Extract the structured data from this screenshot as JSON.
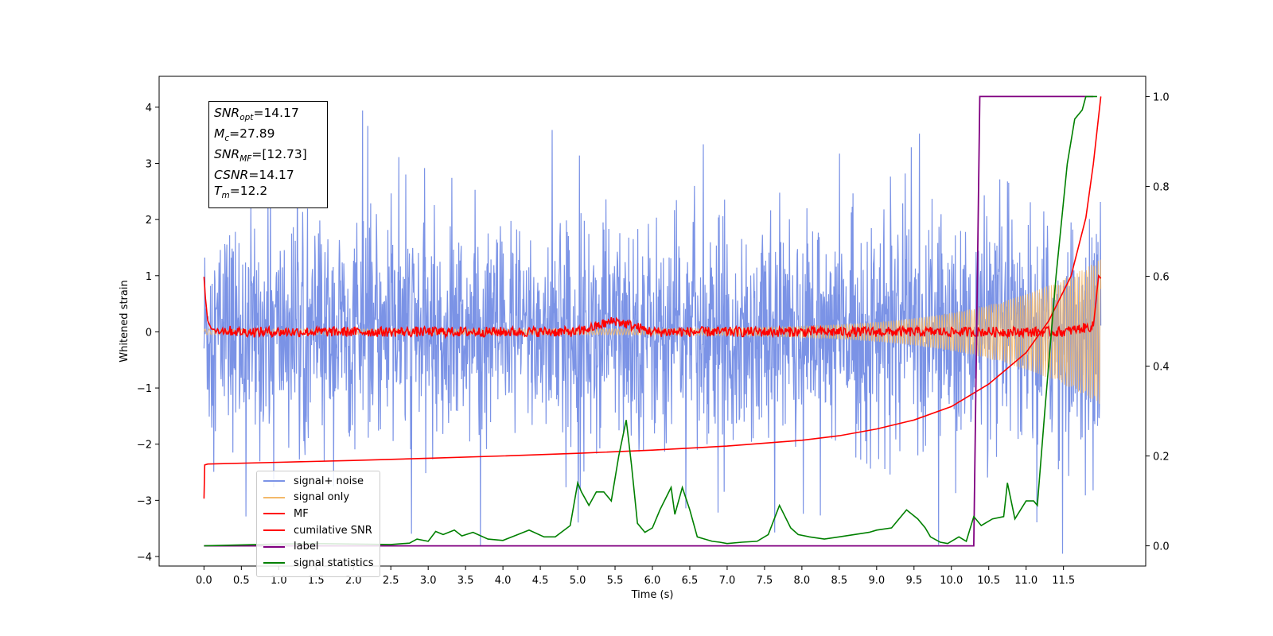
{
  "chart_data": {
    "type": "line",
    "xlabel": "Time (s)",
    "ylabel": "Whitened strain",
    "xlim": [
      -0.6,
      12.6
    ],
    "ylim_left": [
      -4.17,
      4.55
    ],
    "ylim_right": [
      -0.045,
      1.045
    ],
    "x_ticks": [
      "0.0",
      "0.5",
      "1.0",
      "1.5",
      "2.0",
      "2.5",
      "3.0",
      "3.5",
      "4.0",
      "4.5",
      "5.0",
      "5.5",
      "6.0",
      "6.5",
      "7.0",
      "7.5",
      "8.0",
      "8.5",
      "9.0",
      "9.5",
      "10.0",
      "10.5",
      "11.0",
      "11.5"
    ],
    "y_ticks_left": [
      "−4",
      "−3",
      "−2",
      "−1",
      "0",
      "1",
      "2",
      "3",
      "4"
    ],
    "y_ticks_right": [
      "0.0",
      "0.2",
      "0.4",
      "0.6",
      "0.8",
      "1.0"
    ],
    "annotation": {
      "snr_opt": "14.17",
      "mc": "27.89",
      "snr_mf": "[12.73]",
      "csnr": "14.17",
      "tm": "12.2"
    },
    "legend_position": "lower-left",
    "colors": {
      "signal_noise": "#7b93e6",
      "signal_only": "#f3b96a",
      "mf": "#ff0000",
      "cumulative_snr": "#ff0000",
      "label": "#800080",
      "signal_statistics": "#008000"
    },
    "series": [
      {
        "name": "signal+ noise",
        "description": "whitened strain noise, roughly ±2.5 to ±4 peaks over 0–12 s"
      },
      {
        "name": "signal only",
        "description": "chirp growing from 0 to ~±1.3 near 12 s"
      },
      {
        "name": "MF",
        "axis": "left",
        "x": [
          0.0,
          0.02,
          0.05,
          0.1,
          0.5,
          1.0,
          2.0,
          3.0,
          4.0,
          5.0,
          5.5,
          6.0,
          7.0,
          8.0,
          9.0,
          10.0,
          11.0,
          11.5,
          11.9,
          11.97,
          12.0
        ],
        "y": [
          0.98,
          0.6,
          0.2,
          0.05,
          0.0,
          0.0,
          0.0,
          0.0,
          0.0,
          0.0,
          0.2,
          0.0,
          0.0,
          0.0,
          0.0,
          0.0,
          0.0,
          0.0,
          0.1,
          1.0,
          0.95
        ]
      },
      {
        "name": "cumilative SNR",
        "axis": "right",
        "x": [
          0.0,
          0.01,
          0.05,
          1.0,
          2.0,
          3.0,
          4.0,
          5.0,
          6.0,
          7.0,
          8.0,
          8.5,
          9.0,
          9.5,
          10.0,
          10.5,
          11.0,
          11.3,
          11.6,
          11.8,
          11.9,
          12.0
        ],
        "y": [
          0.105,
          0.18,
          0.182,
          0.186,
          0.19,
          0.195,
          0.2,
          0.206,
          0.213,
          0.222,
          0.235,
          0.245,
          0.26,
          0.28,
          0.31,
          0.36,
          0.43,
          0.5,
          0.6,
          0.73,
          0.85,
          1.0
        ]
      },
      {
        "name": "label",
        "axis": "right",
        "x": [
          0.0,
          10.3,
          10.38,
          11.9
        ],
        "y": [
          0.0,
          0.0,
          1.0,
          1.0
        ]
      },
      {
        "name": "signal statistics",
        "axis": "right",
        "x": [
          0.0,
          0.5,
          1.0,
          1.5,
          2.0,
          2.5,
          2.75,
          2.85,
          3.0,
          3.1,
          3.2,
          3.35,
          3.45,
          3.6,
          3.8,
          4.0,
          4.2,
          4.35,
          4.55,
          4.7,
          4.9,
          5.0,
          5.05,
          5.15,
          5.25,
          5.35,
          5.45,
          5.55,
          5.65,
          5.72,
          5.8,
          5.9,
          6.0,
          6.1,
          6.25,
          6.3,
          6.4,
          6.5,
          6.6,
          6.7,
          6.8,
          6.9,
          7.0,
          7.2,
          7.4,
          7.55,
          7.7,
          7.85,
          7.95,
          8.1,
          8.3,
          8.5,
          8.7,
          8.9,
          9.0,
          9.2,
          9.4,
          9.55,
          9.65,
          9.72,
          9.85,
          9.95,
          10.1,
          10.2,
          10.3,
          10.4,
          10.55,
          10.7,
          10.75,
          10.85,
          11.0,
          11.1,
          11.15,
          11.25,
          11.4,
          11.55,
          11.65,
          11.75,
          11.8,
          11.87,
          11.95
        ],
        "y": [
          0.0,
          0.002,
          0.004,
          0.005,
          0.004,
          0.003,
          0.006,
          0.015,
          0.01,
          0.032,
          0.025,
          0.035,
          0.022,
          0.03,
          0.015,
          0.012,
          0.025,
          0.035,
          0.02,
          0.02,
          0.045,
          0.14,
          0.12,
          0.09,
          0.12,
          0.12,
          0.1,
          0.2,
          0.28,
          0.18,
          0.05,
          0.03,
          0.04,
          0.08,
          0.13,
          0.07,
          0.13,
          0.08,
          0.02,
          0.015,
          0.01,
          0.008,
          0.005,
          0.008,
          0.01,
          0.025,
          0.09,
          0.04,
          0.025,
          0.02,
          0.015,
          0.02,
          0.025,
          0.03,
          0.035,
          0.04,
          0.08,
          0.06,
          0.04,
          0.02,
          0.008,
          0.005,
          0.02,
          0.01,
          0.065,
          0.045,
          0.06,
          0.065,
          0.14,
          0.06,
          0.1,
          0.1,
          0.09,
          0.3,
          0.6,
          0.85,
          0.95,
          0.97,
          1.0,
          1.0,
          1.0
        ]
      }
    ]
  }
}
